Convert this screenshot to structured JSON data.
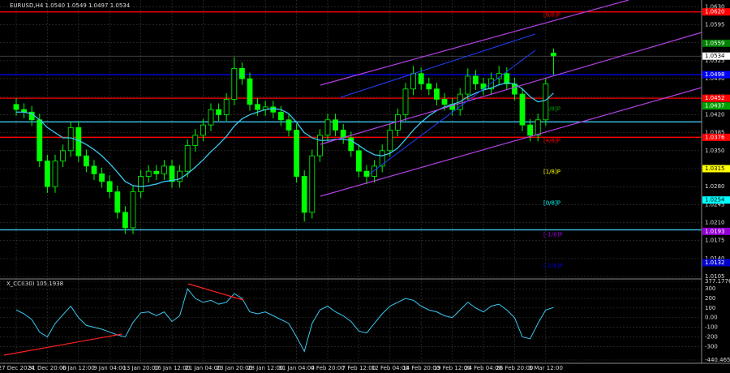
{
  "chart_data": [
    {
      "type": "candlestick",
      "title": "EURUSD,H4  1.0540 1.0549 1.0497 1.0534",
      "color": "#00ff00",
      "ma_color": "#3cc8f0",
      "grid": true,
      "ylim": [
        1.0102,
        1.064
      ],
      "yticks": [
        {
          "value": 1.063,
          "label": "1.0630"
        },
        {
          "value": 1.0595,
          "label": "1.0595"
        },
        {
          "value": 1.056,
          "label": "1.0560"
        },
        {
          "value": 1.0525,
          "label": "1.0525"
        },
        {
          "value": 1.049,
          "label": "1.0490"
        },
        {
          "value": 1.0455,
          "label": "1.0455"
        },
        {
          "value": 1.042,
          "label": "1.0420"
        },
        {
          "value": 1.0385,
          "label": "1.0385"
        },
        {
          "value": 1.035,
          "label": "1.0350"
        },
        {
          "value": 1.0315,
          "label": "1.0315"
        },
        {
          "value": 1.028,
          "label": "1.0280"
        },
        {
          "value": 1.0245,
          "label": "1.0245"
        },
        {
          "value": 1.021,
          "label": "1.0210"
        },
        {
          "value": 1.0175,
          "label": "1.0175"
        },
        {
          "value": 1.014,
          "label": "1.0140"
        },
        {
          "value": 1.0105,
          "label": "1.0105"
        }
      ],
      "xticks": [
        {
          "value": 0,
          "label": "27 Dec 2024"
        },
        {
          "value": 4,
          "label": "31 Dec 20:00"
        },
        {
          "value": 8,
          "label": "6 Jan 12:00"
        },
        {
          "value": 12,
          "label": "9 Jan 04:00"
        },
        {
          "value": 16,
          "label": "13 Jan 20:00"
        },
        {
          "value": 20,
          "label": "16 Jan 12:00"
        },
        {
          "value": 24,
          "label": "21 Jan 04:00"
        },
        {
          "value": 28,
          "label": "23 Jan 20:00"
        },
        {
          "value": 32,
          "label": "28 Jan 12:00"
        },
        {
          "value": 36,
          "label": "31 Jan 04:00"
        },
        {
          "value": 40,
          "label": "4 Feb 20:00"
        },
        {
          "value": 44,
          "label": "7 Feb 12:00"
        },
        {
          "value": 48,
          "label": "12 Feb 04:00"
        },
        {
          "value": 52,
          "label": "14 Feb 20:00"
        },
        {
          "value": 56,
          "label": "19 Feb 12:00"
        },
        {
          "value": 60,
          "label": "24 Feb 04:00"
        },
        {
          "value": 64,
          "label": "26 Feb 20:00"
        },
        {
          "value": 68,
          "label": "3 Mar 12:00"
        }
      ],
      "current_price": {
        "value": 1.0534,
        "label": "1.0534"
      },
      "levels": [
        {
          "value": 1.062,
          "label": "1.0620",
          "color": "#ff0000",
          "line": true,
          "tag": "[8/8]P"
        },
        {
          "value": 1.0559,
          "label": "1.0559",
          "color": "#008000",
          "line": false
        },
        {
          "value": 1.0498,
          "label": "1.0498",
          "color": "#0000ff",
          "line": true
        },
        {
          "value": 1.0452,
          "label": "1.0452",
          "color": "#ff0000",
          "line": true
        },
        {
          "value": 1.0437,
          "label": "1.0437",
          "color": "#00a000",
          "line": false,
          "tag": "[5/8]P"
        },
        {
          "value": 1.0406,
          "color": "#3cc8f0",
          "line": true
        },
        {
          "value": 1.0376,
          "label": "1.0376",
          "color": "#ff0000",
          "line": true,
          "tag": "[4/8]P"
        },
        {
          "value": 1.0315,
          "label": "1.0315",
          "color": "#ffff00",
          "line": false,
          "tag": "[1/8]P"
        },
        {
          "value": 1.0254,
          "label": "1.0254",
          "color": "#00ffff",
          "line": false,
          "tag": "[0/8]P"
        },
        {
          "value": 1.0196,
          "color": "#3cc8f0",
          "line": true
        },
        {
          "value": 1.0193,
          "label": "1.0193",
          "color": "#9400d3",
          "line": false,
          "tag": "[-1/8]P"
        },
        {
          "value": 1.0132,
          "label": "1.0132",
          "color": "#0000cd",
          "line": false,
          "tag": "[-2/8]P"
        }
      ],
      "ohlc": [
        [
          1.044,
          1.0452,
          1.0418,
          1.043
        ],
        [
          1.043,
          1.0442,
          1.0413,
          1.0425
        ],
        [
          1.0425,
          1.0437,
          1.0398,
          1.041
        ],
        [
          1.041,
          1.0422,
          1.0318,
          1.033
        ],
        [
          1.033,
          1.0342,
          1.0268,
          1.028
        ],
        [
          1.028,
          1.0342,
          1.0268,
          1.033
        ],
        [
          1.033,
          1.0362,
          1.0318,
          1.035
        ],
        [
          1.035,
          1.0407,
          1.0338,
          1.0395
        ],
        [
          1.0395,
          1.0407,
          1.0328,
          1.034
        ],
        [
          1.034,
          1.0352,
          1.0308,
          1.032
        ],
        [
          1.032,
          1.0332,
          1.0293,
          1.0305
        ],
        [
          1.0305,
          1.0317,
          1.0278,
          1.029
        ],
        [
          1.029,
          1.0302,
          1.0258,
          1.027
        ],
        [
          1.027,
          1.0282,
          1.0218,
          1.023
        ],
        [
          1.023,
          1.0242,
          1.0188,
          1.02
        ],
        [
          1.02,
          1.0282,
          1.0188,
          1.027
        ],
        [
          1.027,
          1.0312,
          1.0258,
          1.03
        ],
        [
          1.03,
          1.0322,
          1.0288,
          1.031
        ],
        [
          1.031,
          1.0322,
          1.0293,
          1.0305
        ],
        [
          1.0305,
          1.0332,
          1.0293,
          1.032
        ],
        [
          1.032,
          1.0332,
          1.0278,
          1.029
        ],
        [
          1.029,
          1.0322,
          1.0278,
          1.031
        ],
        [
          1.031,
          1.0372,
          1.0298,
          1.036
        ],
        [
          1.036,
          1.0392,
          1.0348,
          1.038
        ],
        [
          1.038,
          1.0412,
          1.0368,
          1.04
        ],
        [
          1.04,
          1.0442,
          1.0388,
          1.043
        ],
        [
          1.043,
          1.0442,
          1.0408,
          1.042
        ],
        [
          1.042,
          1.0462,
          1.0408,
          1.045
        ],
        [
          1.045,
          1.0532,
          1.0438,
          1.051
        ],
        [
          1.051,
          1.0522,
          1.0478,
          1.049
        ],
        [
          1.049,
          1.0502,
          1.0428,
          1.044
        ],
        [
          1.044,
          1.0452,
          1.0418,
          1.043
        ],
        [
          1.043,
          1.0447,
          1.0418,
          1.0435
        ],
        [
          1.0435,
          1.0447,
          1.0413,
          1.0425
        ],
        [
          1.0425,
          1.0437,
          1.0398,
          1.041
        ],
        [
          1.041,
          1.0422,
          1.0378,
          1.039
        ],
        [
          1.039,
          1.0402,
          1.0288,
          1.03
        ],
        [
          1.03,
          1.0312,
          1.0212,
          1.023
        ],
        [
          1.023,
          1.0352,
          1.0218,
          1.034
        ],
        [
          1.034,
          1.0392,
          1.0328,
          1.038
        ],
        [
          1.038,
          1.0422,
          1.0368,
          1.041
        ],
        [
          1.041,
          1.0422,
          1.0378,
          1.039
        ],
        [
          1.039,
          1.0402,
          1.0363,
          1.0375
        ],
        [
          1.0375,
          1.0387,
          1.0338,
          1.035
        ],
        [
          1.035,
          1.0362,
          1.0298,
          1.031
        ],
        [
          1.031,
          1.0322,
          1.0285,
          1.03
        ],
        [
          1.03,
          1.0332,
          1.0288,
          1.032
        ],
        [
          1.032,
          1.0362,
          1.0308,
          1.035
        ],
        [
          1.035,
          1.0402,
          1.0338,
          1.039
        ],
        [
          1.039,
          1.0432,
          1.0378,
          1.042
        ],
        [
          1.042,
          1.0482,
          1.0408,
          1.047
        ],
        [
          1.047,
          1.0515,
          1.0458,
          1.05
        ],
        [
          1.05,
          1.0512,
          1.0468,
          1.048
        ],
        [
          1.048,
          1.0492,
          1.0458,
          1.047
        ],
        [
          1.047,
          1.0482,
          1.0438,
          1.045
        ],
        [
          1.045,
          1.0462,
          1.0428,
          1.044
        ],
        [
          1.044,
          1.0452,
          1.0418,
          1.043
        ],
        [
          1.043,
          1.0472,
          1.0418,
          1.046
        ],
        [
          1.046,
          1.051,
          1.0448,
          1.0495
        ],
        [
          1.0495,
          1.0507,
          1.0468,
          1.048
        ],
        [
          1.048,
          1.0492,
          1.0458,
          1.047
        ],
        [
          1.047,
          1.0502,
          1.0458,
          1.049
        ],
        [
          1.049,
          1.0515,
          1.0478,
          1.05
        ],
        [
          1.05,
          1.0512,
          1.0468,
          1.048
        ],
        [
          1.048,
          1.0492,
          1.0448,
          1.046
        ],
        [
          1.046,
          1.0472,
          1.0388,
          1.04
        ],
        [
          1.04,
          1.0412,
          1.0368,
          1.038
        ],
        [
          1.038,
          1.0422,
          1.0368,
          1.041
        ],
        [
          1.041,
          1.0492,
          1.0398,
          1.048
        ],
        [
          1.054,
          1.0549,
          1.0497,
          1.0534
        ]
      ],
      "ma": [
        1.0425,
        1.0425,
        1.0422,
        1.041,
        1.0395,
        1.0385,
        1.0375,
        1.0375,
        1.037,
        1.0362,
        1.0352,
        1.034,
        1.0325,
        1.0308,
        1.029,
        1.0282,
        1.028,
        1.0282,
        1.0285,
        1.029,
        1.0292,
        1.0295,
        1.0305,
        1.0318,
        1.0332,
        1.0348,
        1.0362,
        1.0378,
        1.0398,
        1.0412,
        1.042,
        1.0425,
        1.043,
        1.0432,
        1.043,
        1.0422,
        1.0405,
        1.0385,
        1.0375,
        1.037,
        1.037,
        1.0372,
        1.0372,
        1.037,
        1.036,
        1.035,
        1.0342,
        1.034,
        1.0345,
        1.0355,
        1.0372,
        1.039,
        1.0405,
        1.0418,
        1.0428,
        1.0435,
        1.044,
        1.0445,
        1.0455,
        1.0462,
        1.0468,
        1.0472,
        1.0478,
        1.0482,
        1.048,
        1.047,
        1.0455,
        1.0445,
        1.0448,
        1.0462
      ]
    },
    {
      "type": "line",
      "title": "X_CCI(30) 105.1938",
      "color": "#3cc8f0",
      "grid": true,
      "ylim": [
        -440.4655,
        377.1776
      ],
      "yticks": [
        377.1776,
        300,
        200,
        100,
        {
          "value": 0,
          "label": "0.00"
        },
        -100,
        -200,
        -300,
        -440.4655
      ],
      "values": [
        80,
        40,
        -20,
        -150,
        -200,
        -60,
        30,
        120,
        0,
        -80,
        -100,
        -120,
        -150,
        -180,
        -200,
        -50,
        50,
        60,
        20,
        60,
        -40,
        20,
        300,
        200,
        160,
        180,
        140,
        160,
        250,
        200,
        60,
        40,
        60,
        20,
        -20,
        -60,
        -200,
        -350,
        -60,
        80,
        120,
        60,
        20,
        -40,
        -140,
        -160,
        -60,
        40,
        120,
        160,
        200,
        180,
        120,
        80,
        60,
        20,
        0,
        80,
        160,
        100,
        60,
        120,
        140,
        80,
        0,
        -200,
        -220,
        -60,
        80,
        105.1938
      ]
    }
  ]
}
